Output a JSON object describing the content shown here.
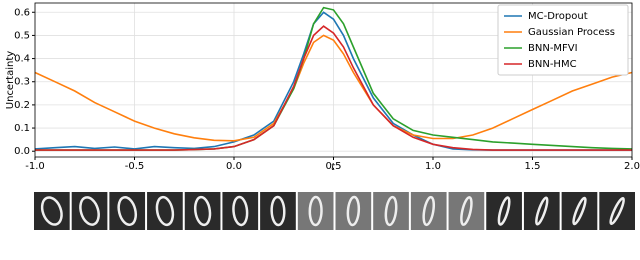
{
  "chart_data": {
    "type": "line",
    "x_label": "t",
    "y_label": "Uncertainty",
    "x": [
      -1.0,
      -0.9,
      -0.8,
      -0.7,
      -0.6,
      -0.5,
      -0.4,
      -0.3,
      -0.2,
      -0.1,
      0.0,
      0.1,
      0.2,
      0.3,
      0.35,
      0.4,
      0.45,
      0.5,
      0.55,
      0.6,
      0.7,
      0.8,
      0.9,
      1.0,
      1.1,
      1.2,
      1.3,
      1.4,
      1.5,
      1.6,
      1.7,
      1.8,
      1.9,
      2.0
    ],
    "series": [
      {
        "name": "MC-Dropout",
        "color": "#1f77b4",
        "values": [
          0.01,
          0.015,
          0.02,
          0.012,
          0.018,
          0.01,
          0.02,
          0.015,
          0.012,
          0.02,
          0.04,
          0.07,
          0.13,
          0.3,
          0.42,
          0.55,
          0.6,
          0.57,
          0.5,
          0.4,
          0.23,
          0.12,
          0.07,
          0.03,
          0.01,
          0.006,
          0.005,
          0.005,
          0.005,
          0.005,
          0.005,
          0.005,
          0.005,
          0.005
        ]
      },
      {
        "name": "Gaussian Process",
        "color": "#ff7f0e",
        "values": [
          0.34,
          0.3,
          0.26,
          0.21,
          0.17,
          0.13,
          0.1,
          0.075,
          0.058,
          0.047,
          0.045,
          0.06,
          0.12,
          0.27,
          0.38,
          0.47,
          0.5,
          0.48,
          0.42,
          0.34,
          0.2,
          0.11,
          0.07,
          0.055,
          0.055,
          0.07,
          0.1,
          0.14,
          0.18,
          0.22,
          0.26,
          0.29,
          0.32,
          0.34
        ]
      },
      {
        "name": "BNN-MFVI",
        "color": "#2ca02c",
        "values": [
          0.005,
          0.005,
          0.005,
          0.005,
          0.005,
          0.005,
          0.005,
          0.005,
          0.007,
          0.01,
          0.02,
          0.05,
          0.11,
          0.27,
          0.4,
          0.55,
          0.62,
          0.61,
          0.55,
          0.45,
          0.25,
          0.14,
          0.09,
          0.07,
          0.06,
          0.05,
          0.04,
          0.035,
          0.03,
          0.025,
          0.02,
          0.015,
          0.012,
          0.01
        ]
      },
      {
        "name": "BNN-HMC",
        "color": "#d62728",
        "values": [
          0.005,
          0.005,
          0.005,
          0.005,
          0.005,
          0.005,
          0.005,
          0.005,
          0.007,
          0.01,
          0.02,
          0.05,
          0.11,
          0.28,
          0.4,
          0.5,
          0.54,
          0.51,
          0.45,
          0.36,
          0.2,
          0.11,
          0.06,
          0.03,
          0.015,
          0.008,
          0.005,
          0.005,
          0.005,
          0.005,
          0.005,
          0.005,
          0.005,
          0.005
        ]
      }
    ],
    "xlim": [
      -1.0,
      2.0
    ],
    "xticks": [
      {
        "value": -1,
        "label": "-1.0"
      },
      -0.5,
      {
        "value": 0,
        "label": "0.0"
      },
      0.5,
      {
        "value": 1,
        "label": "1.0"
      },
      1.5,
      {
        "value": 2,
        "label": "2.0"
      }
    ],
    "ylim": [
      -0.025,
      0.64
    ],
    "yticks": [
      {
        "value": 0,
        "label": "0.0"
      },
      0.1,
      0.2,
      0.3,
      0.4,
      0.5,
      0.6
    ],
    "grid": true,
    "legend": "upper right"
  }
}
